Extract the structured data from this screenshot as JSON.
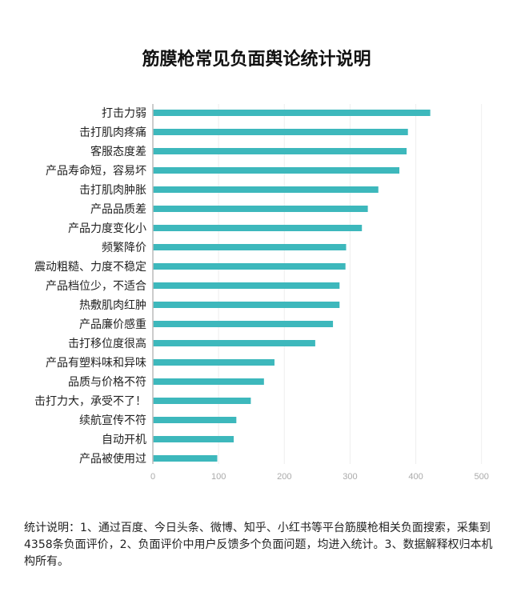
{
  "chart_data": {
    "type": "bar",
    "orientation": "horizontal",
    "title": "筋膜枪常见负面舆论统计说明",
    "categories": [
      "打击力弱",
      "击打肌肉疼痛",
      "客服态度差",
      "产品寿命短，容易坏",
      "击打肌肉肿胀",
      "产品品质差",
      "产品力度变化小",
      "频繁降价",
      "震动粗糙、力度不稳定",
      "产品档位少，不适合",
      "热敷肌肉红肿",
      "产品廉价感重",
      "击打移位度很高",
      "产品有塑料味和异味",
      "品质与价格不符",
      "击打力大，承受不了！",
      "续航宣传不符",
      "自动开机",
      "产品被使用过"
    ],
    "values": [
      422,
      388,
      386,
      375,
      343,
      327,
      318,
      294,
      293,
      284,
      284,
      274,
      247,
      185,
      169,
      149,
      127,
      123,
      98
    ],
    "xlim": [
      0,
      500
    ],
    "xticks": [
      "0",
      "100",
      "200",
      "300",
      "400",
      "500"
    ],
    "grid": true,
    "bar_color": "#3db8bc"
  },
  "footnote": "统计说明：1、通过百度、今日头条、微博、知乎、小红书等平台筋膜枪相关负面搜索，采集到4358条负面评价，2、负面评价中用户反馈多个负面问题，均进入统计。3、数据解释权归本机构所有。"
}
